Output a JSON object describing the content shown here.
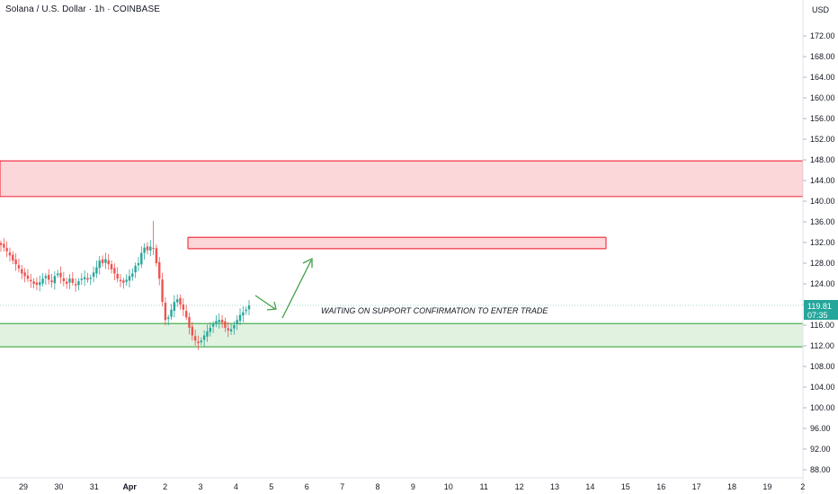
{
  "header": {
    "title": "Solana / U.S. Dollar · 1h · COINBASE"
  },
  "chart_data": {
    "type": "candlestick",
    "title": "Solana / U.S. Dollar · 1h · COINBASE",
    "currency_label": "USD",
    "y_ticks": [
      "172.00",
      "168.00",
      "164.00",
      "160.00",
      "156.00",
      "152.00",
      "148.00",
      "144.00",
      "140.00",
      "136.00",
      "132.00",
      "128.00",
      "124.00",
      "120.00",
      "116.00",
      "112.00",
      "108.00",
      "104.00",
      "100.00",
      "96.00",
      "92.00",
      "88.00"
    ],
    "y_tick_values": [
      172,
      168,
      164,
      160,
      156,
      152,
      148,
      144,
      140,
      136,
      132,
      128,
      124,
      120,
      116,
      112,
      108,
      104,
      100,
      96,
      92,
      88
    ],
    "x_ticks": [
      "29",
      "30",
      "31",
      "Apr",
      "2",
      "3",
      "4",
      "5",
      "6",
      "7",
      "8",
      "9",
      "10",
      "11",
      "12",
      "13",
      "14",
      "15",
      "16",
      "17",
      "18",
      "19",
      "2"
    ],
    "price_label": {
      "value": "119.81",
      "countdown": "07:35"
    },
    "zones": [
      {
        "name": "resistance-zone-upper",
        "from": 140.9,
        "to": 147.8,
        "color": "#f23645"
      },
      {
        "name": "resistance-zone-lower",
        "from": 130.8,
        "to": 133.0,
        "color": "#f23645"
      },
      {
        "name": "support-zone",
        "from": 111.8,
        "to": 116.3,
        "color": "#4caf50"
      }
    ],
    "annotation": "WAITING ON SUPPORT CONFIRMATION TO ENTER TRADE",
    "colors": {
      "up": "#26a69a",
      "down": "#ef5350",
      "support": "#4caf50",
      "resistance": "#f23645",
      "price": "#26a69a"
    },
    "price_series": [
      131.5,
      131.0,
      130.3,
      129.5,
      128.5,
      127.8,
      127.0,
      126.0,
      125.5,
      125.0,
      124.5,
      124.0,
      123.8,
      124.3,
      125.0,
      125.5,
      124.8,
      124.3,
      125.5,
      126.0,
      125.3,
      124.5,
      124.0,
      125.0,
      124.2,
      123.7,
      124.5,
      125.0,
      125.3,
      124.8,
      125.2,
      126.2,
      127.2,
      128.5,
      128.0,
      128.8,
      127.8,
      126.8,
      126.0,
      125.0,
      124.5,
      124.2,
      124.8,
      125.5,
      126.0,
      127.5,
      128.0,
      130.0,
      131.0,
      130.5,
      131.2,
      130.8,
      128.0,
      125.0,
      120.5,
      117.0,
      117.5,
      119.0,
      120.5,
      121.0,
      120.0,
      119.0,
      117.5,
      115.5,
      114.0,
      113.0,
      112.5,
      113.0,
      114.0,
      114.8,
      115.5,
      116.2,
      116.8,
      117.0,
      116.5,
      115.5,
      115.0,
      115.2,
      116.0,
      117.0,
      118.0,
      118.5,
      119.0,
      119.8
    ]
  }
}
